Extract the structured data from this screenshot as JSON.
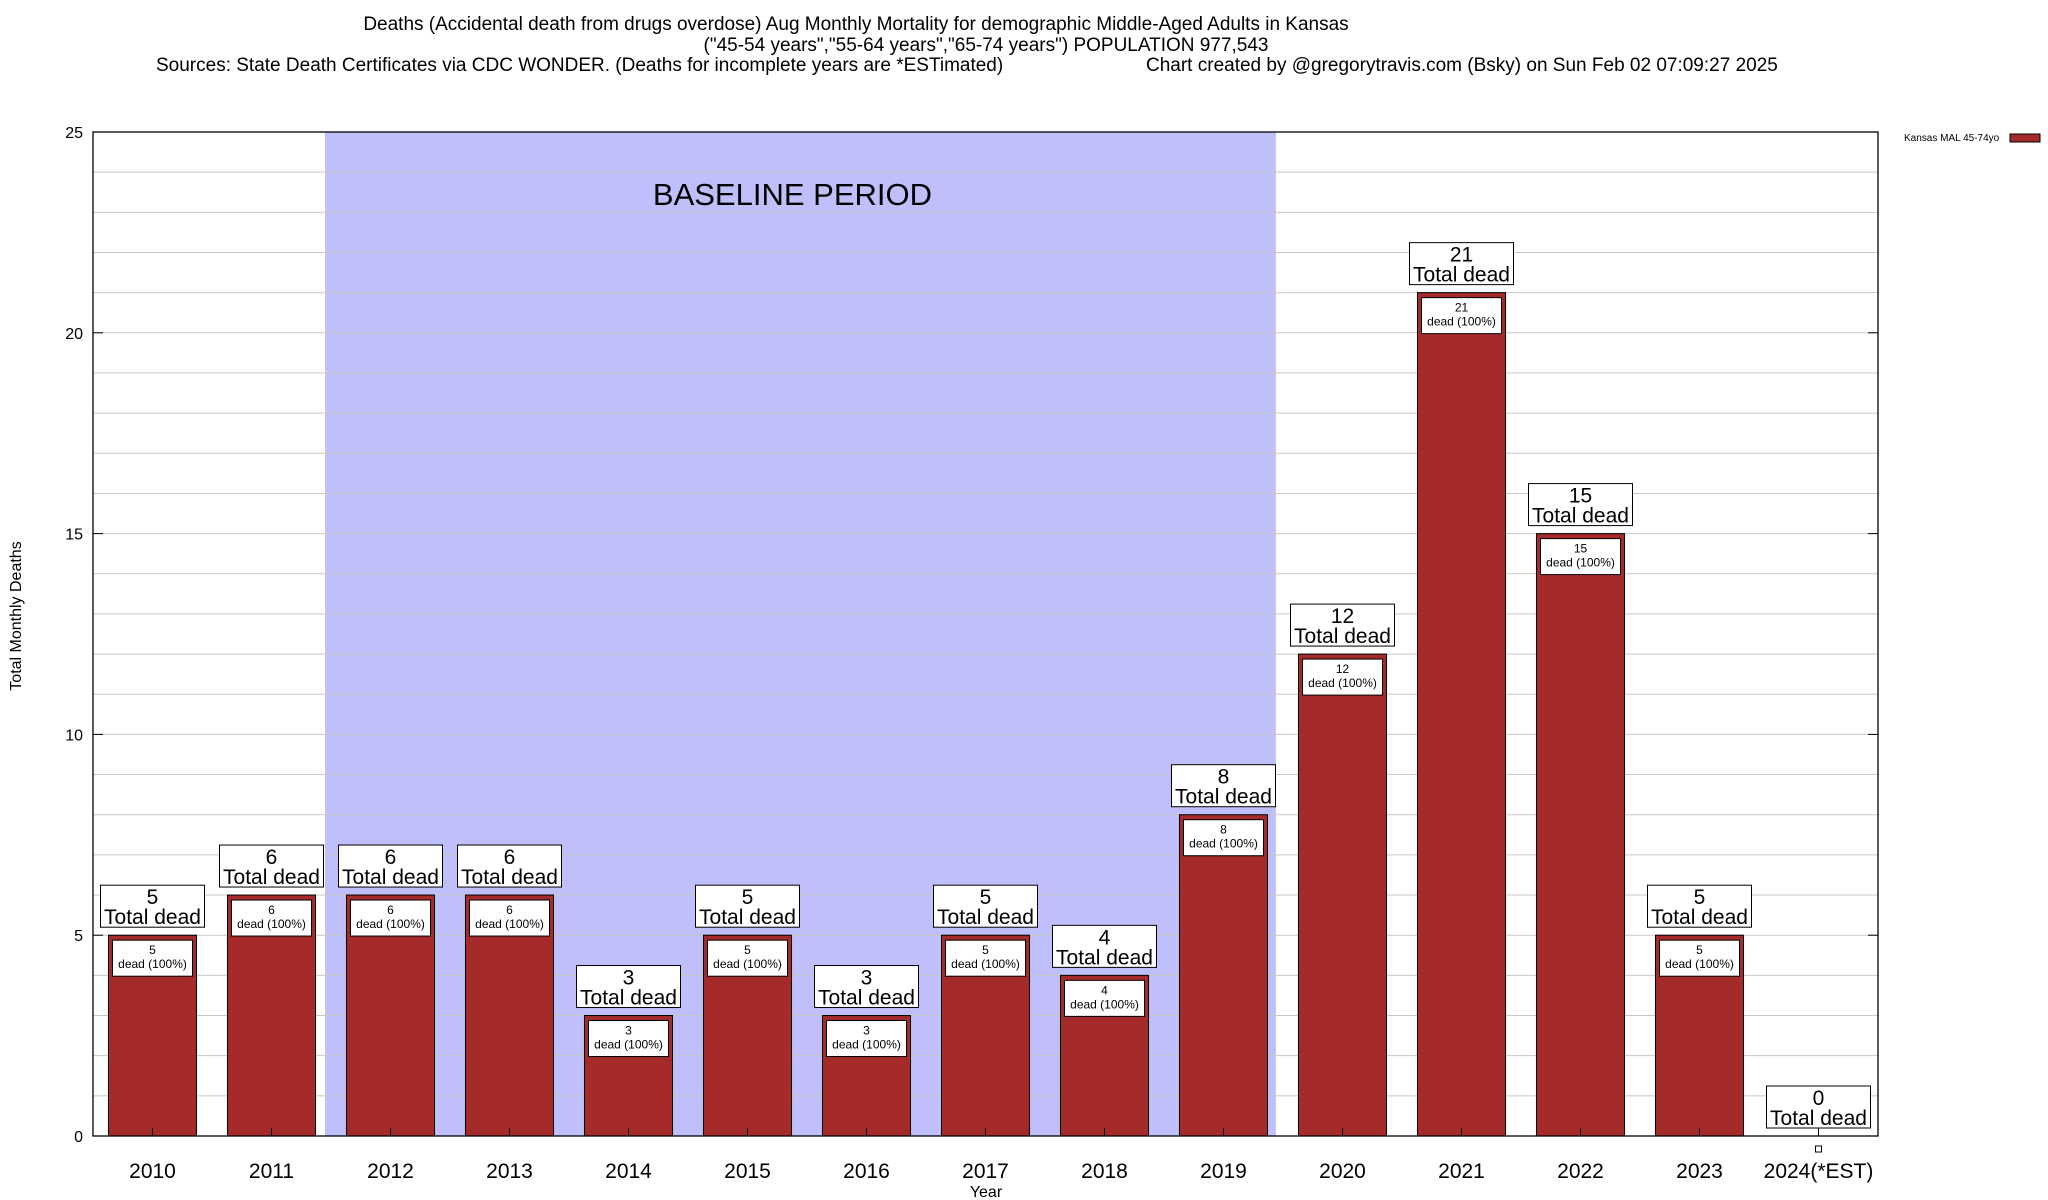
{
  "chart_data": {
    "type": "bar",
    "title_lines": [
      "Deaths (Accidental death from drugs overdose) Aug Monthly Mortality for demographic Middle-Aged Adults in Kansas",
      "(\"45-54 years\",\"55-64 years\",\"65-74 years\") POPULATION 977,543"
    ],
    "sources_text": "Sources: State Death Certificates via CDC WONDER. (Deaths for incomplete years are *ESTimated)",
    "credit_text": "Chart created by @gregorytravis.com (Bsky) on Sun Feb 02 07:09:27 2025",
    "xlabel": "Year",
    "ylabel": "Total Monthly Deaths",
    "ylim": [
      0,
      25
    ],
    "yticks": [
      0,
      5,
      10,
      15,
      20,
      25
    ],
    "categories": [
      "2010",
      "2011",
      "2012",
      "2013",
      "2014",
      "2015",
      "2016",
      "2017",
      "2018",
      "2019",
      "2020",
      "2021",
      "2022",
      "2023",
      "2024(*EST)"
    ],
    "series": [
      {
        "name": "Kansas MAL 45-74yo",
        "values": [
          5,
          6,
          6,
          6,
          3,
          5,
          3,
          5,
          4,
          8,
          12,
          21,
          15,
          5,
          0
        ]
      }
    ],
    "total_label_suffix": "Total dead",
    "segment_label_suffix": "dead (100%)",
    "baseline": {
      "label": "BASELINE PERIOD",
      "from": "2012",
      "to": "2019"
    },
    "colors": {
      "bar": "#a52a2a",
      "baseline": "#bfbffb",
      "grid": "#c8c8c8"
    }
  }
}
